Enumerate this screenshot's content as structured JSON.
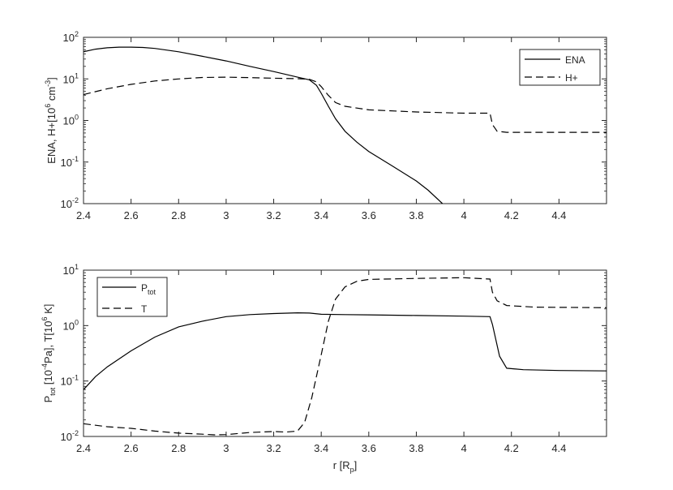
{
  "chart_data": [
    {
      "type": "line",
      "yscale": "log",
      "xlim": [
        2.4,
        4.6
      ],
      "ylim": [
        0.01,
        100
      ],
      "xticks": [
        2.4,
        2.6,
        2.8,
        3.0,
        3.2,
        3.4,
        3.6,
        3.8,
        4.0,
        4.2,
        4.4
      ],
      "xtick_labels": [
        "2.4",
        "2.6",
        "2.8",
        "3",
        "3.2",
        "3.4",
        "3.6",
        "3.8",
        "4",
        "4.2",
        "4.4"
      ],
      "yticks": [
        {
          "base": "10",
          "exp": "-2",
          "value": 0.01
        },
        {
          "base": "10",
          "exp": "-1",
          "value": 0.1
        },
        {
          "base": "10",
          "exp": "0",
          "value": 1
        },
        {
          "base": "10",
          "exp": "1",
          "value": 10
        },
        {
          "base": "10",
          "exp": "2",
          "value": 100
        }
      ],
      "ylabel": {
        "pre": "ENA, H+[10",
        "sup1": "6",
        "mid": " cm",
        "sup2": "-3",
        "post": "]"
      },
      "xlabel": null,
      "legend": {
        "position": "top-right",
        "entries": [
          "ENA",
          "H+"
        ]
      },
      "series": [
        {
          "name": "ENA",
          "style": "solid",
          "x": [
            2.4,
            2.45,
            2.5,
            2.55,
            2.6,
            2.65,
            2.7,
            2.8,
            2.9,
            3.0,
            3.1,
            3.2,
            3.3,
            3.35,
            3.38,
            3.4,
            3.43,
            3.46,
            3.5,
            3.55,
            3.6,
            3.7,
            3.8,
            3.85,
            3.91
          ],
          "y": [
            45,
            52,
            56,
            58,
            58,
            57,
            54,
            45,
            35,
            27,
            20,
            15,
            11,
            9.5,
            7.0,
            4.5,
            2.2,
            1.1,
            0.55,
            0.3,
            0.18,
            0.08,
            0.035,
            0.021,
            0.01
          ]
        },
        {
          "name": "H+",
          "style": "dashed",
          "x": [
            2.4,
            2.5,
            2.6,
            2.7,
            2.8,
            2.9,
            3.0,
            3.1,
            3.2,
            3.3,
            3.35,
            3.38,
            3.4,
            3.43,
            3.46,
            3.5,
            3.6,
            3.8,
            4.0,
            4.11,
            4.12,
            4.14,
            4.18,
            4.3,
            4.5,
            4.6
          ],
          "y": [
            4.2,
            5.8,
            7.4,
            8.9,
            10.0,
            10.8,
            11.0,
            10.7,
            10.4,
            10.1,
            9.8,
            8.5,
            6.5,
            4.0,
            2.7,
            2.2,
            1.8,
            1.6,
            1.5,
            1.5,
            0.8,
            0.55,
            0.52,
            0.52,
            0.52,
            0.52
          ]
        }
      ]
    },
    {
      "type": "line",
      "yscale": "log",
      "xlim": [
        2.4,
        4.6
      ],
      "ylim": [
        0.01,
        10
      ],
      "xticks": [
        2.4,
        2.6,
        2.8,
        3.0,
        3.2,
        3.4,
        3.6,
        3.8,
        4.0,
        4.2,
        4.4
      ],
      "xtick_labels": [
        "2.4",
        "2.6",
        "2.8",
        "3",
        "3.2",
        "3.4",
        "3.6",
        "3.8",
        "4",
        "4.2",
        "4.4"
      ],
      "yticks": [
        {
          "base": "10",
          "exp": "-2",
          "value": 0.01
        },
        {
          "base": "10",
          "exp": "-1",
          "value": 0.1
        },
        {
          "base": "10",
          "exp": "0",
          "value": 1
        },
        {
          "base": "10",
          "exp": "1",
          "value": 10
        }
      ],
      "ylabel": {
        "p": "P",
        "sub": "tot",
        "mid1": " [10",
        "sup1": "-4",
        "mid2": "Pa], T[10",
        "sup2": "6",
        "post": " K]"
      },
      "xlabel": {
        "pre": "r [R",
        "sub": "p",
        "post": "]"
      },
      "legend": {
        "position": "top-left",
        "entries": [
          {
            "main": "P",
            "sub": "tot"
          },
          {
            "main": "T",
            "sub": ""
          }
        ]
      },
      "series": [
        {
          "name": "Ptot",
          "style": "solid",
          "x": [
            2.4,
            2.45,
            2.5,
            2.6,
            2.7,
            2.8,
            2.9,
            3.0,
            3.1,
            3.2,
            3.3,
            3.35,
            3.4,
            3.5,
            3.6,
            3.8,
            4.0,
            4.11,
            4.12,
            4.15,
            4.18,
            4.25,
            4.4,
            4.6
          ],
          "y": [
            0.07,
            0.12,
            0.18,
            0.35,
            0.62,
            0.95,
            1.2,
            1.45,
            1.58,
            1.65,
            1.7,
            1.68,
            1.6,
            1.58,
            1.56,
            1.52,
            1.48,
            1.45,
            1.05,
            0.28,
            0.17,
            0.16,
            0.155,
            0.152
          ]
        },
        {
          "name": "T",
          "style": "dashed",
          "x": [
            2.4,
            2.5,
            2.6,
            2.7,
            2.8,
            2.9,
            2.95,
            3.0,
            3.1,
            3.2,
            3.25,
            3.3,
            3.33,
            3.36,
            3.4,
            3.43,
            3.46,
            3.5,
            3.55,
            3.6,
            3.8,
            4.0,
            4.11,
            4.12,
            4.14,
            4.18,
            4.3,
            4.6
          ],
          "y": [
            0.017,
            0.015,
            0.014,
            0.0125,
            0.0115,
            0.011,
            0.0107,
            0.0108,
            0.0118,
            0.0123,
            0.012,
            0.0125,
            0.018,
            0.05,
            0.3,
            1.2,
            3.0,
            5.0,
            6.3,
            6.8,
            7.1,
            7.3,
            6.9,
            4.0,
            2.8,
            2.3,
            2.15,
            2.1
          ]
        }
      ]
    }
  ]
}
